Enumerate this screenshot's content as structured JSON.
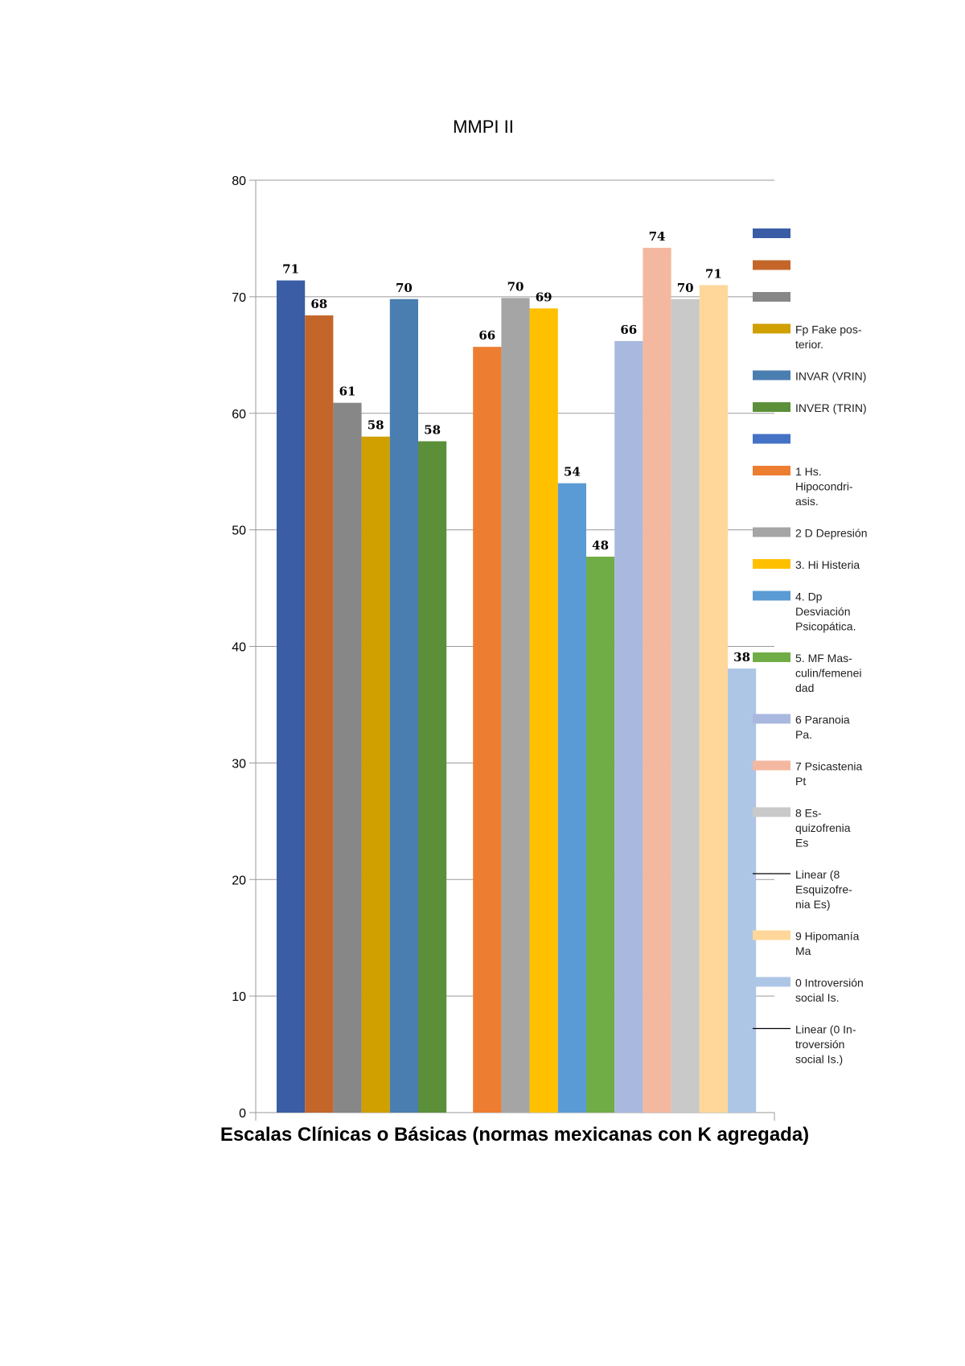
{
  "chart_data": {
    "type": "bar",
    "title": "MMPI II",
    "xlabel": "Escalas Clínicas o Básicas (normas mexicanas con K agregada)",
    "ylabel": "",
    "ylim": [
      0,
      80
    ],
    "yticks": [
      "0",
      "10",
      "20",
      "30",
      "40",
      "50",
      "60",
      "70",
      "80"
    ],
    "grid": true,
    "legend_position": "right",
    "groups": [
      {
        "series": [
          {
            "name": "",
            "value": 71.4,
            "label": "71",
            "color": "#3A5DA5"
          },
          {
            "name": "",
            "value": 68.4,
            "label": "68",
            "color": "#C4662A"
          },
          {
            "name": "",
            "value": 60.9,
            "label": "61",
            "color": "#878787"
          },
          {
            "name": "Fp Fake pos-terior.",
            "value": 58.0,
            "label": "58",
            "color": "#D09F00"
          },
          {
            "name": "INVAR (VRIN)",
            "value": 69.8,
            "label": "70",
            "color": "#4B7EB0"
          },
          {
            "name": "INVER (TRIN)",
            "value": 57.6,
            "label": "58",
            "color": "#5B8F3A"
          }
        ]
      },
      {
        "series": [
          {
            "name": "",
            "value": 0,
            "label": "",
            "color": "#4472C4"
          },
          {
            "name": "1 Hs. Hipocondri-asis.",
            "value": 65.7,
            "label": "66",
            "color": "#ED7D31"
          },
          {
            "name": "2 D Depresión",
            "value": 69.9,
            "label": "70",
            "color": "#A5A5A5"
          },
          {
            "name": "3. Hi Histeria",
            "value": 69.0,
            "label": "69",
            "color": "#FFC000"
          },
          {
            "name": "4. Dp Desviación Psicopática.",
            "value": 54.0,
            "label": "54",
            "color": "#5B9BD5"
          },
          {
            "name": "5. MF Mas-culin/femenei dad",
            "value": 47.7,
            "label": "48",
            "color": "#70AD47"
          },
          {
            "name": "6 Paranoia Pa.",
            "value": 66.2,
            "label": "66",
            "color": "#A9B8DE"
          },
          {
            "name": "7 Psicastenia Pt",
            "value": 74.2,
            "label": "74",
            "color": "#F4B8A0"
          },
          {
            "name": "8 Es-quizofrenia Es",
            "value": 69.8,
            "label": "70",
            "color": "#C9C9C9"
          },
          {
            "name": "9 Hipomanía Ma",
            "value": 71.0,
            "label": "71",
            "color": "#FFD79B"
          },
          {
            "name": "0 Introversión social Is.",
            "value": 38.1,
            "label": "38",
            "color": "#AEC6E6"
          }
        ]
      }
    ],
    "legend": [
      {
        "label": "",
        "kind": "box",
        "color": "#3A5DA5"
      },
      {
        "label": "",
        "kind": "box",
        "color": "#C4662A"
      },
      {
        "label": "",
        "kind": "box",
        "color": "#878787"
      },
      {
        "label": "Fp Fake pos-|terior.",
        "kind": "box",
        "color": "#D09F00"
      },
      {
        "label": "INVAR (VRIN)",
        "kind": "box",
        "color": "#4B7EB0"
      },
      {
        "label": "INVER (TRIN)",
        "kind": "box",
        "color": "#5B8F3A"
      },
      {
        "label": "",
        "kind": "box",
        "color": "#4472C4"
      },
      {
        "label": "1 Hs.|Hipocondri-|asis.",
        "kind": "box",
        "color": "#ED7D31"
      },
      {
        "label": "2 D Depresión",
        "kind": "box",
        "color": "#A5A5A5"
      },
      {
        "label": "3. Hi Histeria",
        "kind": "box",
        "color": "#FFC000"
      },
      {
        "label": "4. Dp|Desviación|Psicopática.",
        "kind": "box",
        "color": "#5B9BD5"
      },
      {
        "label": "5. MF Mas-|culin/femenei|dad",
        "kind": "box",
        "color": "#70AD47"
      },
      {
        "label": "6 Paranoia|Pa.",
        "kind": "box",
        "color": "#A9B8DE"
      },
      {
        "label": "7 Psicastenia|Pt",
        "kind": "box",
        "color": "#F4B8A0"
      },
      {
        "label": "8 Es-|quizofrenia|Es",
        "kind": "box",
        "color": "#C9C9C9"
      },
      {
        "label": "Linear (8|Esquizofre-|nia Es)",
        "kind": "line",
        "color": "#000000"
      },
      {
        "label": "9 Hipomanía|Ma",
        "kind": "box",
        "color": "#FFD79B"
      },
      {
        "label": "0 Introversión|social Is.",
        "kind": "box",
        "color": "#AEC6E6"
      },
      {
        "label": "Linear (0 In-|troversión|social Is.)",
        "kind": "line",
        "color": "#000000"
      }
    ]
  }
}
